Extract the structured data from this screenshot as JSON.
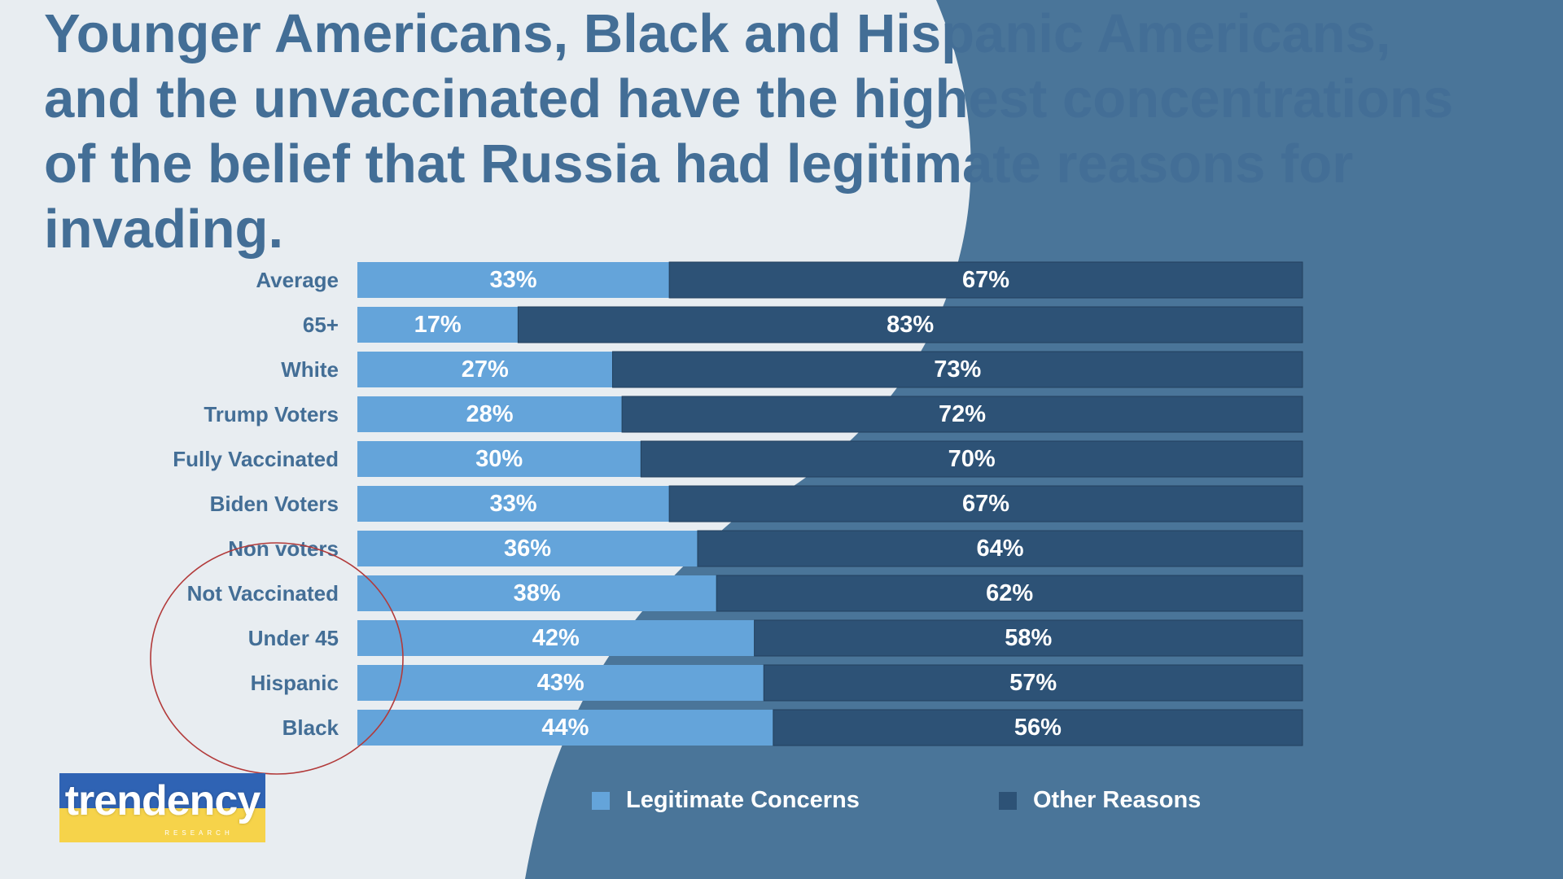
{
  "title": "Younger Americans, Black and Hispanic Americans, and the unvaccinated have the highest concentrations of the belief that Russia had legitimate reasons for invading.",
  "colors": {
    "background_light": "#e8edf1",
    "background_dark": "#4a7599",
    "title_text": "#436e96",
    "category_text": "#436e96",
    "legitimate": "#64a4da",
    "other": "#2d5276",
    "annotation_circle": "#b23a3a"
  },
  "chart_data": {
    "type": "bar",
    "orientation": "horizontal",
    "stacked": true,
    "categories": [
      "Average",
      "65+",
      "White",
      "Trump Voters",
      "Fully Vaccinated",
      "Biden Voters",
      "Non voters",
      "Not Vaccinated",
      "Under 45",
      "Hispanic",
      "Black"
    ],
    "series": [
      {
        "name": "Legitimate Concerns",
        "values": [
          33,
          17,
          27,
          28,
          30,
          33,
          36,
          38,
          42,
          43,
          44
        ],
        "labels": [
          "33%",
          "17%",
          "27%",
          "28%",
          "30%",
          "33%",
          "36%",
          "38%",
          "42%",
          "43%",
          "44%"
        ]
      },
      {
        "name": "Other Reasons",
        "values": [
          67,
          83,
          73,
          72,
          70,
          67,
          64,
          62,
          58,
          57,
          56
        ],
        "labels": [
          "67%",
          "83%",
          "73%",
          "72%",
          "70%",
          "67%",
          "64%",
          "62%",
          "58%",
          "57%",
          "56%"
        ]
      }
    ],
    "xlim": [
      0,
      100
    ],
    "grid": false,
    "legend_position": "bottom",
    "annotation": "circle around Not Vaccinated, Under 45, Hispanic, Black labels"
  },
  "logo": {
    "wordmark": "trendency",
    "subtitle": "RESEARCH"
  }
}
